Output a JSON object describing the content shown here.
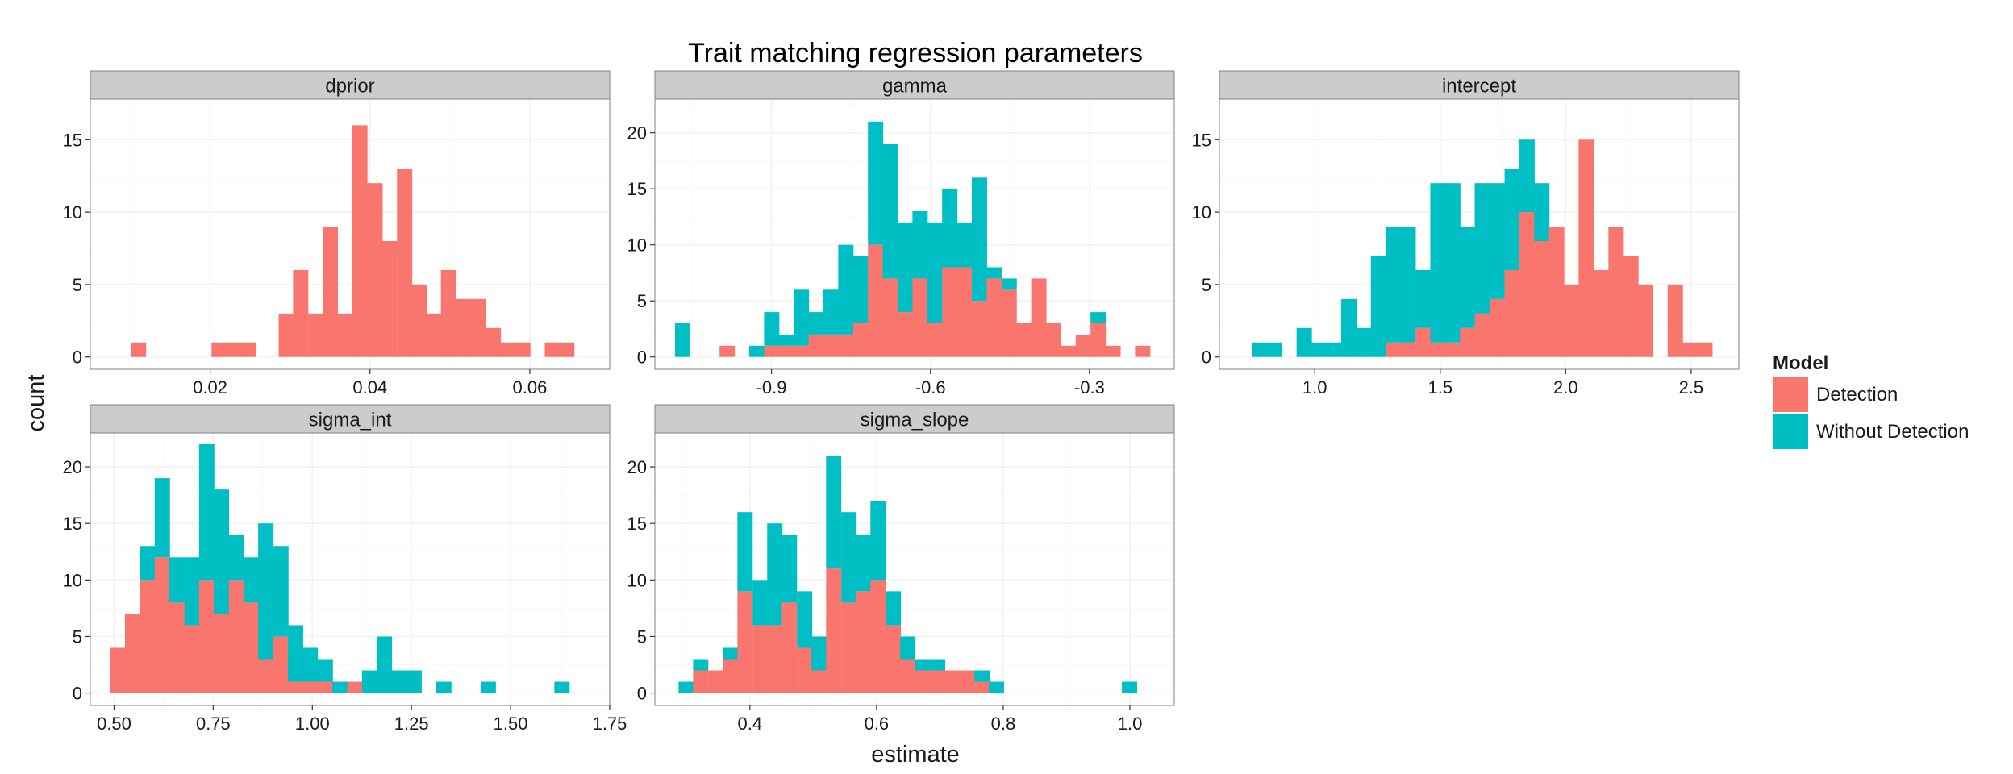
{
  "chart_data": {
    "type": "bar",
    "title": "Trait matching regression parameters",
    "xlabel": "estimate",
    "ylabel": "count",
    "grid": true,
    "stacked": true,
    "legend_position": "right",
    "legend": {
      "title": "Model",
      "entries": [
        {
          "name": "Detection",
          "color": "#F8766D"
        },
        {
          "name": "Without Detection",
          "color": "#00BFC4"
        }
      ]
    },
    "panels": [
      {
        "name": "dprior",
        "xlim": [
          0.005,
          0.07
        ],
        "ylim": [
          -0.85,
          17.8
        ],
        "x_ticks": [
          0.02,
          0.04,
          0.06
        ],
        "x_tick_labels": [
          "0.02",
          "0.04",
          "0.06"
        ],
        "y_ticks": [
          0,
          5,
          10,
          15
        ],
        "y_tick_labels": [
          "0",
          "5",
          "10",
          "15"
        ],
        "bin_width": 0.00185,
        "bins": [
          {
            "x": 0.011,
            "detection": 1,
            "without": 0
          },
          {
            "x": 0.0211,
            "detection": 1,
            "without": 0
          },
          {
            "x": 0.023,
            "detection": 1,
            "without": 0
          },
          {
            "x": 0.0248,
            "detection": 1,
            "without": 0
          },
          {
            "x": 0.0295,
            "detection": 3,
            "without": 0
          },
          {
            "x": 0.0313,
            "detection": 6,
            "without": 0
          },
          {
            "x": 0.0332,
            "detection": 3,
            "without": 0
          },
          {
            "x": 0.035,
            "detection": 9,
            "without": 0
          },
          {
            "x": 0.0369,
            "detection": 3,
            "without": 0
          },
          {
            "x": 0.0387,
            "detection": 16,
            "without": 0
          },
          {
            "x": 0.0406,
            "detection": 12,
            "without": 0
          },
          {
            "x": 0.0424,
            "detection": 8,
            "without": 0
          },
          {
            "x": 0.0443,
            "detection": 13,
            "without": 0
          },
          {
            "x": 0.0461,
            "detection": 5,
            "without": 0
          },
          {
            "x": 0.048,
            "detection": 3,
            "without": 0
          },
          {
            "x": 0.0498,
            "detection": 6,
            "without": 0
          },
          {
            "x": 0.0517,
            "detection": 4,
            "without": 0
          },
          {
            "x": 0.0535,
            "detection": 4,
            "without": 0
          },
          {
            "x": 0.0554,
            "detection": 2,
            "without": 0
          },
          {
            "x": 0.0572,
            "detection": 1,
            "without": 0
          },
          {
            "x": 0.0591,
            "detection": 1,
            "without": 0
          },
          {
            "x": 0.0628,
            "detection": 1,
            "without": 0
          },
          {
            "x": 0.0646,
            "detection": 1,
            "without": 0
          }
        ]
      },
      {
        "name": "gamma",
        "xlim": [
          -1.12,
          -0.14
        ],
        "ylim": [
          -1.1,
          23.0
        ],
        "x_ticks": [
          -0.9,
          -0.6,
          -0.3
        ],
        "x_tick_labels": [
          "-0.9",
          "-0.6",
          "-0.3"
        ],
        "y_ticks": [
          0,
          5,
          10,
          15,
          20
        ],
        "y_tick_labels": [
          "0",
          "5",
          "10",
          "15",
          "20"
        ],
        "bin_width": 0.02795,
        "bins": [
          {
            "x": -1.068,
            "detection": 0,
            "without": 3
          },
          {
            "x": -0.984,
            "detection": 1,
            "without": 0
          },
          {
            "x": -0.928,
            "detection": 0,
            "without": 1
          },
          {
            "x": -0.9,
            "detection": 1,
            "without": 3
          },
          {
            "x": -0.872,
            "detection": 1,
            "without": 1
          },
          {
            "x": -0.844,
            "detection": 1,
            "without": 5
          },
          {
            "x": -0.816,
            "detection": 2,
            "without": 2
          },
          {
            "x": -0.788,
            "detection": 2,
            "without": 4
          },
          {
            "x": -0.76,
            "detection": 2,
            "without": 8
          },
          {
            "x": -0.732,
            "detection": 3,
            "without": 6
          },
          {
            "x": -0.704,
            "detection": 10,
            "without": 11
          },
          {
            "x": -0.676,
            "detection": 7,
            "without": 12
          },
          {
            "x": -0.648,
            "detection": 4,
            "without": 8
          },
          {
            "x": -0.62,
            "detection": 7,
            "without": 6
          },
          {
            "x": -0.592,
            "detection": 3,
            "without": 9
          },
          {
            "x": -0.564,
            "detection": 8,
            "without": 7
          },
          {
            "x": -0.536,
            "detection": 8,
            "without": 4
          },
          {
            "x": -0.508,
            "detection": 5,
            "without": 11
          },
          {
            "x": -0.48,
            "detection": 7,
            "without": 1
          },
          {
            "x": -0.452,
            "detection": 6,
            "without": 1
          },
          {
            "x": -0.424,
            "detection": 3,
            "without": 0
          },
          {
            "x": -0.396,
            "detection": 7,
            "without": 0
          },
          {
            "x": -0.368,
            "detection": 3,
            "without": 0
          },
          {
            "x": -0.34,
            "detection": 1,
            "without": 0
          },
          {
            "x": -0.312,
            "detection": 2,
            "without": 0
          },
          {
            "x": -0.284,
            "detection": 3,
            "without": 1
          },
          {
            "x": -0.256,
            "detection": 1,
            "without": 0
          },
          {
            "x": -0.2,
            "detection": 1,
            "without": 0
          }
        ]
      },
      {
        "name": "intercept",
        "xlim": [
          0.62,
          2.69
        ],
        "ylim": [
          -0.85,
          17.8
        ],
        "x_ticks": [
          1.0,
          1.5,
          2.0,
          2.5
        ],
        "x_tick_labels": [
          "1.0",
          "1.5",
          "2.0",
          "2.5"
        ],
        "y_ticks": [
          0,
          5,
          10,
          15
        ],
        "y_tick_labels": [
          "0",
          "5",
          "10",
          "15"
        ],
        "bin_width": 0.05915,
        "bins": [
          {
            "x": 0.78,
            "detection": 0,
            "without": 1
          },
          {
            "x": 0.839,
            "detection": 0,
            "without": 1
          },
          {
            "x": 0.957,
            "detection": 0,
            "without": 2
          },
          {
            "x": 1.016,
            "detection": 0,
            "without": 1
          },
          {
            "x": 1.076,
            "detection": 0,
            "without": 1
          },
          {
            "x": 1.135,
            "detection": 0,
            "without": 4
          },
          {
            "x": 1.194,
            "detection": 0,
            "without": 2
          },
          {
            "x": 1.253,
            "detection": 0,
            "without": 7
          },
          {
            "x": 1.312,
            "detection": 1,
            "without": 8
          },
          {
            "x": 1.371,
            "detection": 1,
            "without": 8
          },
          {
            "x": 1.431,
            "detection": 2,
            "without": 4
          },
          {
            "x": 1.49,
            "detection": 1,
            "without": 11
          },
          {
            "x": 1.549,
            "detection": 1,
            "without": 11
          },
          {
            "x": 1.608,
            "detection": 2,
            "without": 7
          },
          {
            "x": 1.667,
            "detection": 3,
            "without": 9
          },
          {
            "x": 1.726,
            "detection": 4,
            "without": 8
          },
          {
            "x": 1.786,
            "detection": 6,
            "without": 7
          },
          {
            "x": 1.845,
            "detection": 10,
            "without": 5
          },
          {
            "x": 1.904,
            "detection": 8,
            "without": 4
          },
          {
            "x": 1.963,
            "detection": 9,
            "without": 0
          },
          {
            "x": 2.022,
            "detection": 5,
            "without": 0
          },
          {
            "x": 2.081,
            "detection": 15,
            "without": 0
          },
          {
            "x": 2.141,
            "detection": 6,
            "without": 0
          },
          {
            "x": 2.2,
            "detection": 9,
            "without": 0
          },
          {
            "x": 2.259,
            "detection": 7,
            "without": 0
          },
          {
            "x": 2.318,
            "detection": 5,
            "without": 0
          },
          {
            "x": 2.436,
            "detection": 5,
            "without": 0
          },
          {
            "x": 2.495,
            "detection": 1,
            "without": 0
          },
          {
            "x": 2.554,
            "detection": 1,
            "without": 0
          }
        ]
      },
      {
        "name": "sigma_int",
        "xlim": [
          0.44,
          1.75
        ],
        "ylim": [
          -1.1,
          23.0
        ],
        "x_ticks": [
          0.5,
          0.75,
          1.0,
          1.25,
          1.5,
          1.75
        ],
        "x_tick_labels": [
          "0.50",
          "0.75",
          "1.00",
          "1.25",
          "1.50",
          "1.75"
        ],
        "y_ticks": [
          0,
          5,
          10,
          15,
          20
        ],
        "y_tick_labels": [
          "0",
          "5",
          "10",
          "15",
          "20"
        ],
        "bin_width": 0.03734,
        "bins": [
          {
            "x": 0.509,
            "detection": 4,
            "without": 0
          },
          {
            "x": 0.546,
            "detection": 7,
            "without": 0
          },
          {
            "x": 0.584,
            "detection": 10,
            "without": 3
          },
          {
            "x": 0.621,
            "detection": 12,
            "without": 7
          },
          {
            "x": 0.658,
            "detection": 8,
            "without": 4
          },
          {
            "x": 0.696,
            "detection": 6,
            "without": 6
          },
          {
            "x": 0.733,
            "detection": 10,
            "without": 12
          },
          {
            "x": 0.77,
            "detection": 7,
            "without": 11
          },
          {
            "x": 0.808,
            "detection": 10,
            "without": 4
          },
          {
            "x": 0.845,
            "detection": 8,
            "without": 4
          },
          {
            "x": 0.882,
            "detection": 3,
            "without": 12
          },
          {
            "x": 0.92,
            "detection": 5,
            "without": 8
          },
          {
            "x": 0.957,
            "detection": 1,
            "without": 5
          },
          {
            "x": 0.994,
            "detection": 1,
            "without": 3
          },
          {
            "x": 1.032,
            "detection": 1,
            "without": 2
          },
          {
            "x": 1.069,
            "detection": 0,
            "without": 1
          },
          {
            "x": 1.107,
            "detection": 1,
            "without": 0
          },
          {
            "x": 1.144,
            "detection": 0,
            "without": 2
          },
          {
            "x": 1.181,
            "detection": 0,
            "without": 5
          },
          {
            "x": 1.219,
            "detection": 0,
            "without": 2
          },
          {
            "x": 1.256,
            "detection": 0,
            "without": 2
          },
          {
            "x": 1.331,
            "detection": 0,
            "without": 1
          },
          {
            "x": 1.443,
            "detection": 0,
            "without": 1
          },
          {
            "x": 1.629,
            "detection": 0,
            "without": 1
          }
        ]
      },
      {
        "name": "sigma_slope",
        "xlim": [
          0.25,
          1.07
        ],
        "ylim": [
          -1.1,
          23.0
        ],
        "x_ticks": [
          0.4,
          0.6,
          0.8,
          1.0
        ],
        "x_tick_labels": [
          "0.4",
          "0.6",
          "0.8",
          "1.0"
        ],
        "y_ticks": [
          0,
          5,
          10,
          15,
          20
        ],
        "y_tick_labels": [
          "0",
          "5",
          "10",
          "15",
          "20"
        ],
        "bin_width": 0.02334,
        "bins": [
          {
            "x": 0.299,
            "detection": 0,
            "without": 1
          },
          {
            "x": 0.322,
            "detection": 2,
            "without": 1
          },
          {
            "x": 0.346,
            "detection": 2,
            "without": 0
          },
          {
            "x": 0.369,
            "detection": 3,
            "without": 1
          },
          {
            "x": 0.392,
            "detection": 9,
            "without": 7
          },
          {
            "x": 0.416,
            "detection": 6,
            "without": 4
          },
          {
            "x": 0.439,
            "detection": 6,
            "without": 9
          },
          {
            "x": 0.462,
            "detection": 8,
            "without": 6
          },
          {
            "x": 0.486,
            "detection": 4,
            "without": 5
          },
          {
            "x": 0.509,
            "detection": 2,
            "without": 3
          },
          {
            "x": 0.532,
            "detection": 11,
            "without": 10
          },
          {
            "x": 0.556,
            "detection": 8,
            "without": 8
          },
          {
            "x": 0.579,
            "detection": 9,
            "without": 5
          },
          {
            "x": 0.602,
            "detection": 10,
            "without": 7
          },
          {
            "x": 0.626,
            "detection": 6,
            "without": 3
          },
          {
            "x": 0.649,
            "detection": 3,
            "without": 2
          },
          {
            "x": 0.672,
            "detection": 2,
            "without": 1
          },
          {
            "x": 0.696,
            "detection": 2,
            "without": 1
          },
          {
            "x": 0.719,
            "detection": 2,
            "without": 0
          },
          {
            "x": 0.742,
            "detection": 2,
            "without": 0
          },
          {
            "x": 0.766,
            "detection": 1,
            "without": 1
          },
          {
            "x": 0.789,
            "detection": 0,
            "without": 1
          },
          {
            "x": 0.999,
            "detection": 0,
            "without": 1
          }
        ]
      }
    ]
  }
}
